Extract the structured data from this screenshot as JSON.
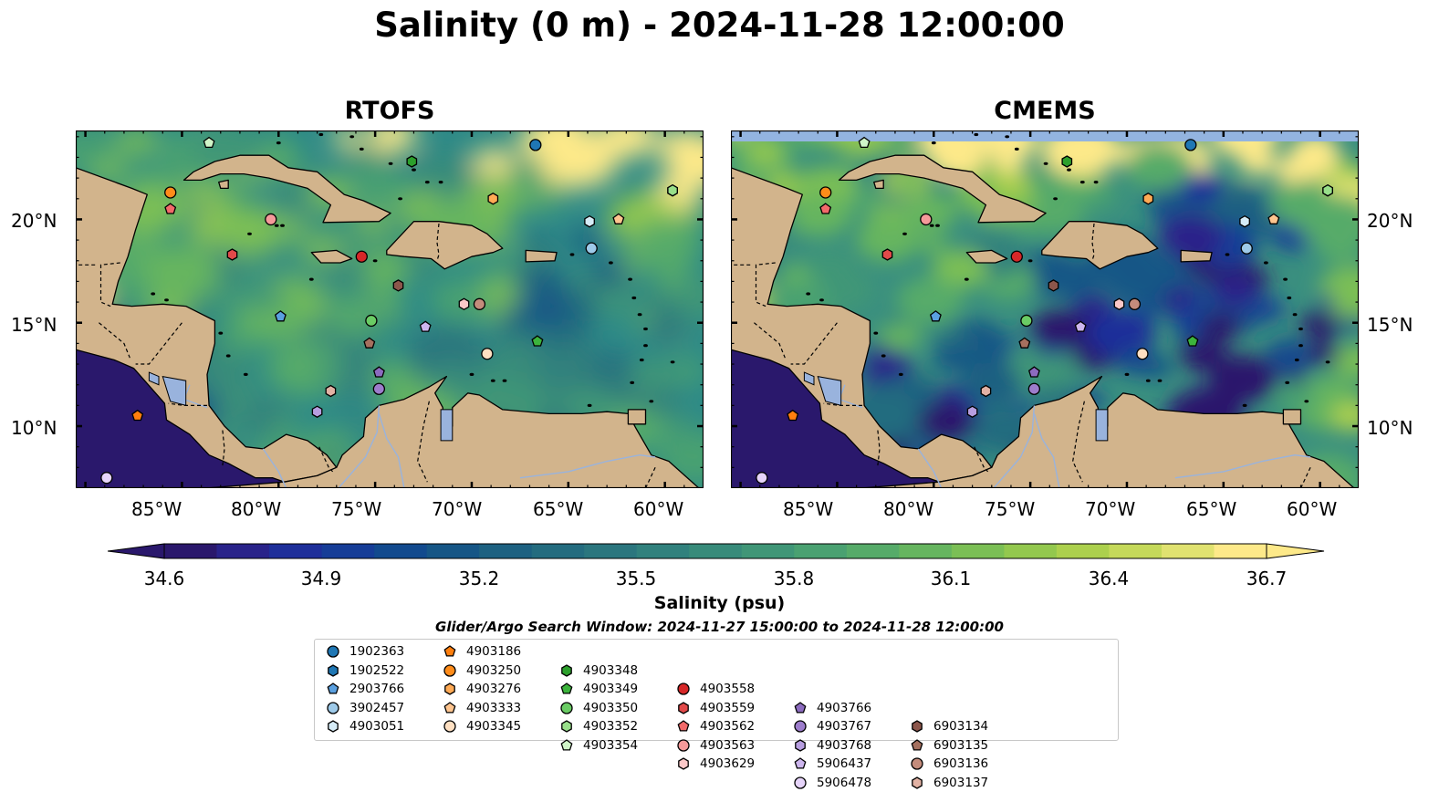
{
  "title": "Salinity (0 m) - 2024-11-28 12:00:00",
  "panels": [
    {
      "title": "RTOFS",
      "ocean_fill": "#2e8a87"
    },
    {
      "title": "CMEMS",
      "ocean_fill": "#3a8f7f",
      "nodata_band_color": "#93b4e0"
    }
  ],
  "axes": {
    "lon_ticks": [
      "85°W",
      "80°W",
      "75°W",
      "70°W",
      "65°W",
      "60°W"
    ],
    "lat_ticks": [
      "20°N",
      "15°N",
      "10°N"
    ]
  },
  "colorbar": {
    "label": "Salinity (psu)",
    "ticks": [
      "34.6",
      "34.9",
      "35.2",
      "35.5",
      "35.8",
      "36.1",
      "36.4",
      "36.7"
    ],
    "min": 34.6,
    "max": 36.7,
    "extend": "both",
    "colormap": "haline",
    "colors": [
      "#2a186c",
      "#29238a",
      "#1e2f9a",
      "#163d97",
      "#124a8e",
      "#165686",
      "#1d6181",
      "#246c7f",
      "#2b767e",
      "#31817d",
      "#388b7a",
      "#409677",
      "#4aa171",
      "#56ab69",
      "#66b55f",
      "#7bbf55",
      "#93c84e",
      "#acd04d",
      "#c5d95a",
      "#e0e270",
      "#fde989"
    ]
  },
  "land_color": "#d2b48c",
  "water_feature_color": "#99b3dd",
  "search_window": "Glider/Argo Search Window: 2024-11-27 15:00:00 to 2024-11-28 12:00:00",
  "legend": [
    {
      "id": "1902363",
      "color": "#1f77b4",
      "marker": "circle"
    },
    {
      "id": "1902522",
      "color": "#1f77b4",
      "marker": "hexagon"
    },
    {
      "id": "2903766",
      "color": "#5aa0e0",
      "marker": "pentagon"
    },
    {
      "id": "3902457",
      "color": "#9ecae9",
      "marker": "circle"
    },
    {
      "id": "4903051",
      "color": "#d6ecf7",
      "marker": "hexagon"
    },
    {
      "id": "4903186",
      "color": "#ff7f0e",
      "marker": "pentagon"
    },
    {
      "id": "4903250",
      "color": "#ff8c1a",
      "marker": "circle"
    },
    {
      "id": "4903276",
      "color": "#ffaa55",
      "marker": "hexagon"
    },
    {
      "id": "4903333",
      "color": "#ffc58f",
      "marker": "pentagon"
    },
    {
      "id": "4903345",
      "color": "#ffe0c2",
      "marker": "circle"
    },
    {
      "id": "4903348",
      "color": "#2ca02c",
      "marker": "hexagon"
    },
    {
      "id": "4903349",
      "color": "#3cb43c",
      "marker": "pentagon"
    },
    {
      "id": "4903350",
      "color": "#6acc64",
      "marker": "circle"
    },
    {
      "id": "4903352",
      "color": "#98df8a",
      "marker": "hexagon"
    },
    {
      "id": "4903354",
      "color": "#d0f5c8",
      "marker": "pentagon"
    },
    {
      "id": "4903558",
      "color": "#d62728",
      "marker": "circle"
    },
    {
      "id": "4903559",
      "color": "#e24a4a",
      "marker": "hexagon"
    },
    {
      "id": "4903562",
      "color": "#f26a6a",
      "marker": "pentagon"
    },
    {
      "id": "4903563",
      "color": "#f59a9a",
      "marker": "circle"
    },
    {
      "id": "4903629",
      "color": "#fbc8c8",
      "marker": "hexagon"
    },
    {
      "id": "4903766",
      "color": "#8c6bbf",
      "marker": "pentagon"
    },
    {
      "id": "4903767",
      "color": "#9d7dcc",
      "marker": "circle"
    },
    {
      "id": "4903768",
      "color": "#b79ee0",
      "marker": "hexagon"
    },
    {
      "id": "5906437",
      "color": "#cdb6ee",
      "marker": "pentagon"
    },
    {
      "id": "5906478",
      "color": "#e6d4fa",
      "marker": "circle"
    },
    {
      "id": "6903134",
      "color": "#8c564b",
      "marker": "hexagon"
    },
    {
      "id": "6903135",
      "color": "#a5705f",
      "marker": "pentagon"
    },
    {
      "id": "6903136",
      "color": "#c48c7c",
      "marker": "circle"
    },
    {
      "id": "6903137",
      "color": "#e2b2a4",
      "marker": "hexagon"
    }
  ],
  "floats": [
    {
      "id": "1902363",
      "lon": -66.7,
      "lat": 23.6
    },
    {
      "id": "1902522",
      "lon": -59.6,
      "lat": 21.4
    },
    {
      "id": "2903766",
      "lon": -79.9,
      "lat": 15.3
    },
    {
      "id": "3902457",
      "lon": -63.8,
      "lat": 18.6
    },
    {
      "id": "4903051",
      "lon": -63.9,
      "lat": 19.9
    },
    {
      "id": "4903186",
      "lon": -87.3,
      "lat": 10.5
    },
    {
      "id": "4903250",
      "lon": -85.6,
      "lat": 21.3
    },
    {
      "id": "4903276",
      "lon": -68.9,
      "lat": 21.0
    },
    {
      "id": "4903333",
      "lon": -62.4,
      "lat": 20.0
    },
    {
      "id": "4903345",
      "lon": -69.2,
      "lat": 13.5
    },
    {
      "id": "4903348",
      "lon": -73.1,
      "lat": 22.8
    },
    {
      "id": "4903349",
      "lon": -66.6,
      "lat": 14.1
    },
    {
      "id": "4903350",
      "lon": -75.2,
      "lat": 15.1
    },
    {
      "id": "4903352",
      "lon": -59.6,
      "lat": 21.4
    },
    {
      "id": "4903354",
      "lon": -83.6,
      "lat": 23.7
    },
    {
      "id": "4903558",
      "lon": -75.7,
      "lat": 18.2
    },
    {
      "id": "4903559",
      "lon": -82.4,
      "lat": 18.3
    },
    {
      "id": "4903562",
      "lon": -85.6,
      "lat": 20.5
    },
    {
      "id": "4903563",
      "lon": -80.4,
      "lat": 20.0
    },
    {
      "id": "4903629",
      "lon": -70.4,
      "lat": 15.9
    },
    {
      "id": "4903766",
      "lon": -74.8,
      "lat": 12.6
    },
    {
      "id": "4903767",
      "lon": -74.8,
      "lat": 11.8
    },
    {
      "id": "4903768",
      "lon": -78.0,
      "lat": 10.7
    },
    {
      "id": "5906437",
      "lon": -72.4,
      "lat": 14.8
    },
    {
      "id": "5906478",
      "lon": -88.9,
      "lat": 7.5
    },
    {
      "id": "6903134",
      "lon": -73.8,
      "lat": 16.8
    },
    {
      "id": "6903135",
      "lon": -75.3,
      "lat": 14.0
    },
    {
      "id": "6903136",
      "lon": -69.6,
      "lat": 15.9
    },
    {
      "id": "6903137",
      "lon": -77.3,
      "lat": 11.7
    }
  ]
}
